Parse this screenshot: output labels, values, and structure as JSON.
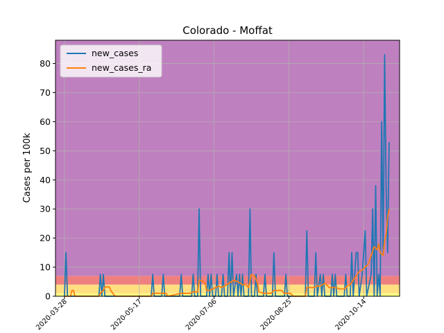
{
  "chart_data": {
    "type": "line",
    "title": "Colorado - Moffat",
    "xlabel": "",
    "ylabel": "Cases per 100k",
    "xlim": [
      "2020-03-22",
      "2020-11-07"
    ],
    "ylim": [
      0,
      88
    ],
    "grid": true,
    "legend_position": "top-left",
    "x_ticks": [
      "2020-03-28",
      "2020-05-17",
      "2020-07-06",
      "2020-08-25",
      "2020-10-14"
    ],
    "y_ticks": [
      0,
      10,
      20,
      30,
      40,
      50,
      60,
      70,
      80
    ],
    "risk_bands": [
      {
        "from": 0,
        "to": 1,
        "color": "#ffff80"
      },
      {
        "from": 1,
        "to": 4,
        "color": "#ffdf80"
      },
      {
        "from": 4,
        "to": 7,
        "color": "#f08080"
      },
      {
        "from": 7,
        "to": 88,
        "color": "#bf80bf"
      }
    ],
    "series": [
      {
        "name": "new_cases",
        "color": "#1f77b4",
        "points": [
          [
            "2020-03-28",
            0
          ],
          [
            "2020-03-29",
            15
          ],
          [
            "2020-03-30",
            0
          ],
          [
            "2020-04-06",
            0
          ],
          [
            "2020-04-20",
            0
          ],
          [
            "2020-04-21",
            7.5
          ],
          [
            "2020-04-22",
            0
          ],
          [
            "2020-04-23",
            7.5
          ],
          [
            "2020-04-24",
            0
          ],
          [
            "2020-05-25",
            0
          ],
          [
            "2020-05-26",
            7.5
          ],
          [
            "2020-05-27",
            0
          ],
          [
            "2020-06-01",
            0
          ],
          [
            "2020-06-02",
            7.5
          ],
          [
            "2020-06-03",
            0
          ],
          [
            "2020-06-13",
            0
          ],
          [
            "2020-06-14",
            7.5
          ],
          [
            "2020-06-15",
            0
          ],
          [
            "2020-06-21",
            0
          ],
          [
            "2020-06-22",
            7.5
          ],
          [
            "2020-06-23",
            0
          ],
          [
            "2020-06-25",
            0
          ],
          [
            "2020-06-26",
            30
          ],
          [
            "2020-06-27",
            0
          ],
          [
            "2020-07-01",
            0
          ],
          [
            "2020-07-02",
            7.5
          ],
          [
            "2020-07-03",
            0
          ],
          [
            "2020-07-04",
            7.5
          ],
          [
            "2020-07-05",
            0
          ],
          [
            "2020-07-07",
            0
          ],
          [
            "2020-07-08",
            7.5
          ],
          [
            "2020-07-09",
            0
          ],
          [
            "2020-07-11",
            0
          ],
          [
            "2020-07-12",
            7.5
          ],
          [
            "2020-07-13",
            0
          ],
          [
            "2020-07-15",
            0
          ],
          [
            "2020-07-16",
            15
          ],
          [
            "2020-07-17",
            0
          ],
          [
            "2020-07-18",
            15
          ],
          [
            "2020-07-19",
            0
          ],
          [
            "2020-07-21",
            7.5
          ],
          [
            "2020-07-22",
            0
          ],
          [
            "2020-07-23",
            7.5
          ],
          [
            "2020-07-24",
            0
          ],
          [
            "2020-07-25",
            7.5
          ],
          [
            "2020-07-26",
            0
          ],
          [
            "2020-07-29",
            0
          ],
          [
            "2020-07-30",
            30
          ],
          [
            "2020-07-31",
            0
          ],
          [
            "2020-08-02",
            0
          ],
          [
            "2020-08-03",
            7.5
          ],
          [
            "2020-08-04",
            0
          ],
          [
            "2020-08-08",
            0
          ],
          [
            "2020-08-09",
            7.5
          ],
          [
            "2020-08-10",
            0
          ],
          [
            "2020-08-14",
            0
          ],
          [
            "2020-08-15",
            15
          ],
          [
            "2020-08-16",
            0
          ],
          [
            "2020-08-22",
            0
          ],
          [
            "2020-08-23",
            7.5
          ],
          [
            "2020-08-24",
            0
          ],
          [
            "2020-09-05",
            0
          ],
          [
            "2020-09-06",
            22.5
          ],
          [
            "2020-09-07",
            0
          ],
          [
            "2020-09-11",
            0
          ],
          [
            "2020-09-12",
            15
          ],
          [
            "2020-09-13",
            0
          ],
          [
            "2020-09-15",
            7.5
          ],
          [
            "2020-09-16",
            0
          ],
          [
            "2020-09-17",
            7.5
          ],
          [
            "2020-09-18",
            0
          ],
          [
            "2020-09-22",
            0
          ],
          [
            "2020-09-23",
            7.5
          ],
          [
            "2020-09-24",
            0
          ],
          [
            "2020-09-25",
            7.5
          ],
          [
            "2020-09-26",
            0
          ],
          [
            "2020-10-01",
            0
          ],
          [
            "2020-10-02",
            7.5
          ],
          [
            "2020-10-03",
            0
          ],
          [
            "2020-10-05",
            0
          ],
          [
            "2020-10-06",
            15
          ],
          [
            "2020-10-07",
            0
          ],
          [
            "2020-10-08",
            7.5
          ],
          [
            "2020-10-09",
            15
          ],
          [
            "2020-10-10",
            15
          ],
          [
            "2020-10-11",
            0
          ],
          [
            "2020-10-13",
            7.5
          ],
          [
            "2020-10-14",
            15
          ],
          [
            "2020-10-15",
            22.5
          ],
          [
            "2020-10-16",
            0
          ],
          [
            "2020-10-19",
            7.5
          ],
          [
            "2020-10-20",
            30
          ],
          [
            "2020-10-21",
            0
          ],
          [
            "2020-10-22",
            38
          ],
          [
            "2020-10-23",
            0
          ],
          [
            "2020-10-24",
            7.5
          ],
          [
            "2020-10-25",
            0
          ],
          [
            "2020-10-26",
            60
          ],
          [
            "2020-10-27",
            14
          ],
          [
            "2020-10-28",
            83
          ],
          [
            "2020-10-29",
            37
          ],
          [
            "2020-10-30",
            15
          ],
          [
            "2020-10-31",
            53
          ]
        ]
      },
      {
        "name": "new_cases_ra",
        "color": "#ff7f0e",
        "points": [
          [
            "2020-03-28",
            0
          ],
          [
            "2020-04-01",
            0
          ],
          [
            "2020-04-02",
            2
          ],
          [
            "2020-04-03",
            2
          ],
          [
            "2020-04-04",
            0
          ],
          [
            "2020-04-20",
            0
          ],
          [
            "2020-04-21",
            1
          ],
          [
            "2020-04-23",
            2
          ],
          [
            "2020-04-24",
            3.2
          ],
          [
            "2020-04-27",
            3.2
          ],
          [
            "2020-04-28",
            2
          ],
          [
            "2020-04-30",
            0.5
          ],
          [
            "2020-05-01",
            0
          ],
          [
            "2020-05-25",
            0
          ],
          [
            "2020-05-26",
            1
          ],
          [
            "2020-06-04",
            1
          ],
          [
            "2020-06-05",
            0
          ],
          [
            "2020-06-14",
            1
          ],
          [
            "2020-06-20",
            1
          ],
          [
            "2020-06-22",
            1.5
          ],
          [
            "2020-06-25",
            1.5
          ],
          [
            "2020-06-26",
            5.5
          ],
          [
            "2020-06-28",
            5.3
          ],
          [
            "2020-06-30",
            4.5
          ],
          [
            "2020-07-01",
            2
          ],
          [
            "2020-07-03",
            2
          ],
          [
            "2020-07-05",
            2.5
          ],
          [
            "2020-07-07",
            3
          ],
          [
            "2020-07-09",
            3.5
          ],
          [
            "2020-07-11",
            3
          ],
          [
            "2020-07-13",
            3.5
          ],
          [
            "2020-07-16",
            4.5
          ],
          [
            "2020-07-19",
            5.5
          ],
          [
            "2020-07-22",
            5
          ],
          [
            "2020-07-25",
            4
          ],
          [
            "2020-07-27",
            4
          ],
          [
            "2020-07-29",
            3
          ],
          [
            "2020-07-31",
            7.5
          ],
          [
            "2020-08-02",
            7
          ],
          [
            "2020-08-04",
            4.5
          ],
          [
            "2020-08-05",
            1.5
          ],
          [
            "2020-08-08",
            1
          ],
          [
            "2020-08-11",
            1
          ],
          [
            "2020-08-13",
            1
          ],
          [
            "2020-08-15",
            2
          ],
          [
            "2020-08-20",
            2
          ],
          [
            "2020-08-22",
            1
          ],
          [
            "2020-08-26",
            1
          ],
          [
            "2020-08-28",
            0
          ],
          [
            "2020-09-05",
            0
          ],
          [
            "2020-09-06",
            3
          ],
          [
            "2020-09-09",
            3
          ],
          [
            "2020-09-11",
            3
          ],
          [
            "2020-09-13",
            3.5
          ],
          [
            "2020-09-15",
            3.5
          ],
          [
            "2020-09-18",
            4.5
          ],
          [
            "2020-09-21",
            3
          ],
          [
            "2020-09-25",
            3
          ],
          [
            "2020-09-28",
            2.5
          ],
          [
            "2020-10-01",
            2.5
          ],
          [
            "2020-10-03",
            3.5
          ],
          [
            "2020-10-05",
            4
          ],
          [
            "2020-10-07",
            5.5
          ],
          [
            "2020-10-09",
            7
          ],
          [
            "2020-10-11",
            8.5
          ],
          [
            "2020-10-13",
            9
          ],
          [
            "2020-10-15",
            10
          ],
          [
            "2020-10-17",
            11
          ],
          [
            "2020-10-19",
            14
          ],
          [
            "2020-10-21",
            17
          ],
          [
            "2020-10-23",
            16
          ],
          [
            "2020-10-24",
            18
          ],
          [
            "2020-10-25",
            15
          ],
          [
            "2020-10-27",
            14
          ],
          [
            "2020-10-28",
            19
          ],
          [
            "2020-10-29",
            21
          ],
          [
            "2020-10-30",
            27
          ],
          [
            "2020-10-31",
            30
          ]
        ]
      }
    ]
  }
}
